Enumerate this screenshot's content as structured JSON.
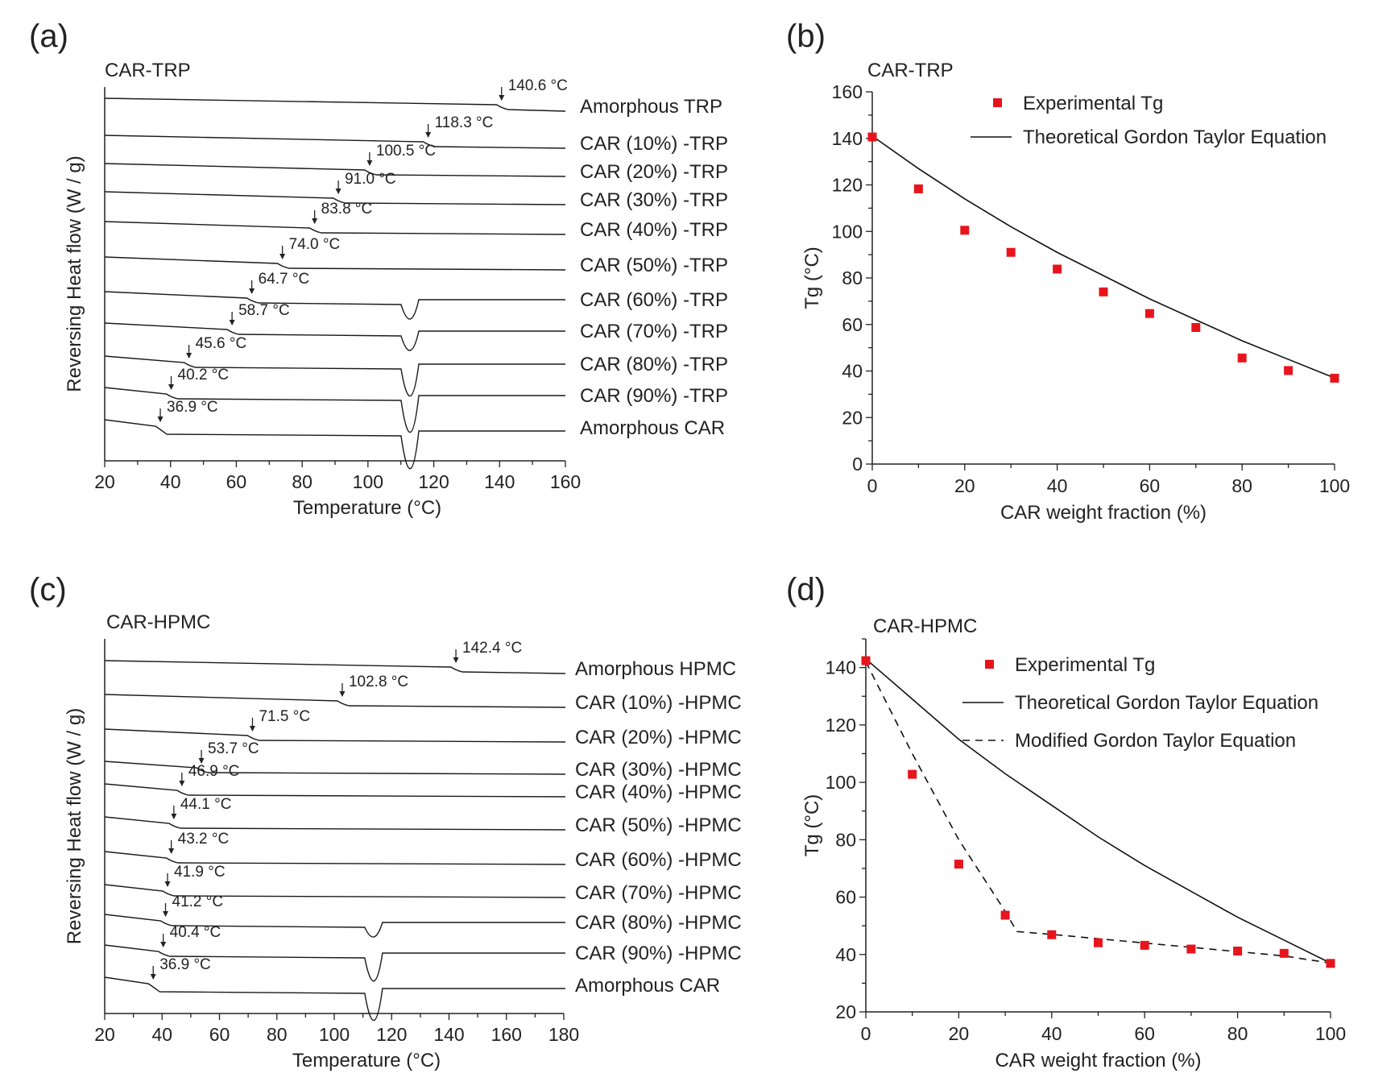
{
  "chart_data": [
    {
      "panel": "(a)",
      "type": "line",
      "title": "CAR-TRP",
      "xlabel": "Temperature (°C)",
      "ylabel": "Reversing Heat flow (W / g)",
      "xlim": [
        20,
        160
      ],
      "xticks": [
        20,
        40,
        60,
        80,
        100,
        120,
        140,
        160
      ],
      "series": [
        {
          "name": "Amorphous TRP",
          "tg": 140.6,
          "tg_label": "140.6 °C",
          "melt": false
        },
        {
          "name": "CAR (10%) -TRP",
          "tg": 118.3,
          "tg_label": "118.3 °C",
          "melt": false
        },
        {
          "name": "CAR (20%) -TRP",
          "tg": 100.5,
          "tg_label": "100.5 °C",
          "melt": false
        },
        {
          "name": "CAR (30%) -TRP",
          "tg": 91.0,
          "tg_label": "91.0 °C",
          "melt": false
        },
        {
          "name": "CAR (40%) -TRP",
          "tg": 83.8,
          "tg_label": "83.8 °C",
          "melt": false
        },
        {
          "name": "CAR (50%) -TRP",
          "tg": 74.0,
          "tg_label": "74.0 °C",
          "melt": false
        },
        {
          "name": "CAR (60%) -TRP",
          "tg": 64.7,
          "tg_label": "64.7 °C",
          "melt": true
        },
        {
          "name": "CAR (70%) -TRP",
          "tg": 58.7,
          "tg_label": "58.7 °C",
          "melt": true
        },
        {
          "name": "CAR (80%) -TRP",
          "tg": 45.6,
          "tg_label": "45.6 °C",
          "melt": true
        },
        {
          "name": "CAR (90%) -TRP",
          "tg": 40.2,
          "tg_label": "40.2 °C",
          "melt": true
        },
        {
          "name": "Amorphous CAR",
          "tg": 36.9,
          "tg_label": "36.9 °C",
          "melt": true
        }
      ]
    },
    {
      "panel": "(b)",
      "type": "scatter",
      "title": "CAR-TRP",
      "xlabel": "CAR weight fraction (%)",
      "ylabel": "Tg (°C)",
      "xlim": [
        0,
        100
      ],
      "ylim": [
        0,
        160
      ],
      "xticks": [
        0,
        20,
        40,
        60,
        80,
        100
      ],
      "yticks": [
        0,
        20,
        40,
        60,
        80,
        100,
        120,
        140,
        160
      ],
      "legend": [
        "Experimental Tg",
        "Theoretical Gordon Taylor Equation"
      ],
      "legend_position": "top-right",
      "series": [
        {
          "name": "Experimental Tg",
          "kind": "scatter",
          "x": [
            0,
            10,
            20,
            30,
            40,
            50,
            60,
            70,
            80,
            90,
            100
          ],
          "y": [
            140.6,
            118.3,
            100.5,
            91.0,
            83.8,
            74.0,
            64.7,
            58.7,
            45.6,
            40.2,
            36.9
          ]
        },
        {
          "name": "Theoretical Gordon Taylor Equation",
          "kind": "line",
          "x": [
            0,
            10,
            20,
            30,
            40,
            50,
            60,
            70,
            80,
            90,
            100
          ],
          "y": [
            141,
            127,
            114,
            102,
            91,
            81,
            71,
            62,
            53,
            45,
            37
          ]
        }
      ]
    },
    {
      "panel": "(c)",
      "type": "line",
      "title": "CAR-HPMC",
      "xlabel": "Temperature (°C)",
      "ylabel": "Reversing Heat flow (W / g)",
      "xlim": [
        20,
        180
      ],
      "xticks": [
        20,
        40,
        60,
        80,
        100,
        120,
        140,
        160,
        180
      ],
      "series": [
        {
          "name": "Amorphous HPMC",
          "tg": 142.4,
          "tg_label": "142.4 °C",
          "melt": false
        },
        {
          "name": "CAR (10%) -HPMC",
          "tg": 102.8,
          "tg_label": "102.8 °C",
          "melt": false
        },
        {
          "name": "CAR (20%) -HPMC",
          "tg": 71.5,
          "tg_label": "71.5 °C",
          "melt": false
        },
        {
          "name": "CAR (30%) -HPMC",
          "tg": 53.7,
          "tg_label": "53.7 °C",
          "melt": false
        },
        {
          "name": "CAR (40%) -HPMC",
          "tg": 46.9,
          "tg_label": "46.9 °C",
          "melt": false
        },
        {
          "name": "CAR (50%) -HPMC",
          "tg": 44.1,
          "tg_label": "44.1 °C",
          "melt": false
        },
        {
          "name": "CAR (60%) -HPMC",
          "tg": 43.2,
          "tg_label": "43.2 °C",
          "melt": false
        },
        {
          "name": "CAR (70%) -HPMC",
          "tg": 41.9,
          "tg_label": "41.9 °C",
          "melt": false
        },
        {
          "name": "CAR (80%) -HPMC",
          "tg": 41.2,
          "tg_label": "41.2 °C",
          "melt": true
        },
        {
          "name": "CAR (90%) -HPMC",
          "tg": 40.4,
          "tg_label": "40.4 °C",
          "melt": true
        },
        {
          "name": "Amorphous CAR",
          "tg": 36.9,
          "tg_label": "36.9 °C",
          "melt": true
        }
      ]
    },
    {
      "panel": "(d)",
      "type": "scatter",
      "title": "CAR-HPMC",
      "xlabel": "CAR weight fraction (%)",
      "ylabel": "Tg (°C)",
      "xlim": [
        0,
        100
      ],
      "ylim": [
        20,
        150
      ],
      "xticks": [
        0,
        20,
        40,
        60,
        80,
        100
      ],
      "yticks": [
        20,
        40,
        60,
        80,
        100,
        120,
        140
      ],
      "legend": [
        "Experimental Tg",
        "Theoretical Gordon Taylor Equation",
        "Modified Gordon Taylor Equation"
      ],
      "legend_position": "top-right",
      "series": [
        {
          "name": "Experimental Tg",
          "kind": "scatter",
          "x": [
            0,
            10,
            20,
            30,
            40,
            50,
            60,
            70,
            80,
            90,
            100
          ],
          "y": [
            142.4,
            102.8,
            71.5,
            53.7,
            46.9,
            44.1,
            43.2,
            41.9,
            41.2,
            40.4,
            36.9
          ]
        },
        {
          "name": "Theoretical Gordon Taylor Equation",
          "kind": "line",
          "x": [
            0,
            10,
            20,
            30,
            40,
            50,
            60,
            70,
            80,
            90,
            100
          ],
          "y": [
            143,
            129,
            115,
            103,
            92,
            81,
            71,
            62,
            53,
            45,
            37
          ]
        },
        {
          "name": "Modified Gordon Taylor Equation",
          "kind": "dashed",
          "x": [
            0,
            10,
            20,
            30,
            32.5,
            40,
            50,
            60,
            70,
            80,
            90,
            100
          ],
          "y": [
            142,
            110,
            80,
            55,
            48,
            47,
            45.5,
            44,
            42.5,
            41,
            39.5,
            37
          ]
        }
      ]
    }
  ]
}
